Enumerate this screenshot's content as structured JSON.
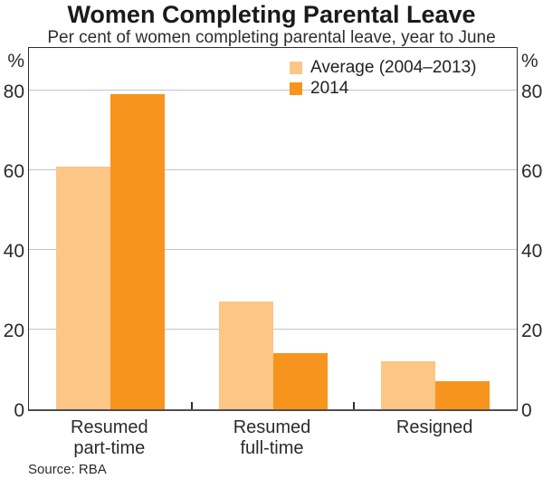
{
  "page": {
    "title": "Women Completing Parental Leave",
    "subtitle": "Per cent of women completing parental leave, year to June",
    "source": "Source: RBA"
  },
  "chart_data": {
    "type": "bar",
    "title": "Women Completing Parental Leave",
    "subtitle": "Per cent of women completing parental leave, year to June",
    "categories": [
      "Resumed part-time",
      "Resumed full-time",
      "Resigned"
    ],
    "category_lines": [
      [
        "Resumed",
        "part-time"
      ],
      [
        "Resumed",
        "full-time"
      ],
      [
        "Resigned"
      ]
    ],
    "series": [
      {
        "name": "Average (2004–2013)",
        "color": "#FBC686",
        "values": [
          61,
          27,
          12
        ]
      },
      {
        "name": "2014",
        "color": "#F7941E",
        "values": [
          79,
          14,
          7
        ]
      }
    ],
    "unit": "%",
    "yticks": [
      0,
      20,
      40,
      60,
      80
    ],
    "ylim": [
      0,
      91
    ],
    "grid": true,
    "legend_position": "top-center-inside",
    "source": "Source: RBA",
    "colors": {
      "average_series": "#FBC686",
      "year_2014_series": "#F7941E",
      "gridline": "#c4c4c4",
      "axis": "#2d2d2d",
      "text": "#2b2b2b"
    }
  }
}
